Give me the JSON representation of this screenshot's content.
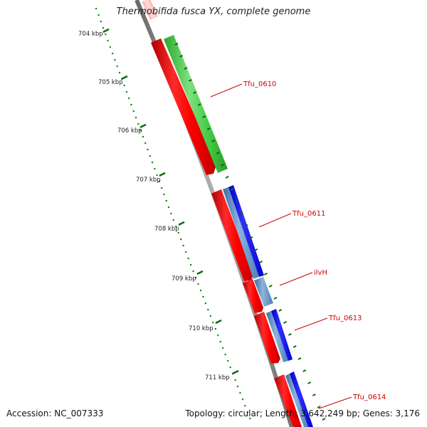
{
  "header": {
    "title": "Thermobifida fusca YX, complete genome"
  },
  "footer": {
    "accession": "Accession: NC_007333",
    "summary": "Topology: circular; Length: 3,642,249 bp; Genes: 3,176"
  },
  "ruler": {
    "ticks": [
      "704 kbp",
      "705 kbp",
      "706 kbp",
      "707 kbp",
      "708 kbp",
      "709 kbp",
      "710 kbp",
      "711 kbp"
    ],
    "tick_color": "#1a8a1a"
  },
  "genes": [
    {
      "label": "Tfu_0610"
    },
    {
      "label": "Tfu_0611"
    },
    {
      "label": "ilvH"
    },
    {
      "label": "Tfu_0613"
    },
    {
      "label": "Tfu_0614"
    }
  ],
  "colors": {
    "cds": "#ff0000",
    "forward_feature": "#33cc33",
    "reverse_feature": "#0000ff",
    "steel_feature": "#4a7fb8",
    "backbone": "#808080",
    "gene_label": "#cc0000"
  }
}
